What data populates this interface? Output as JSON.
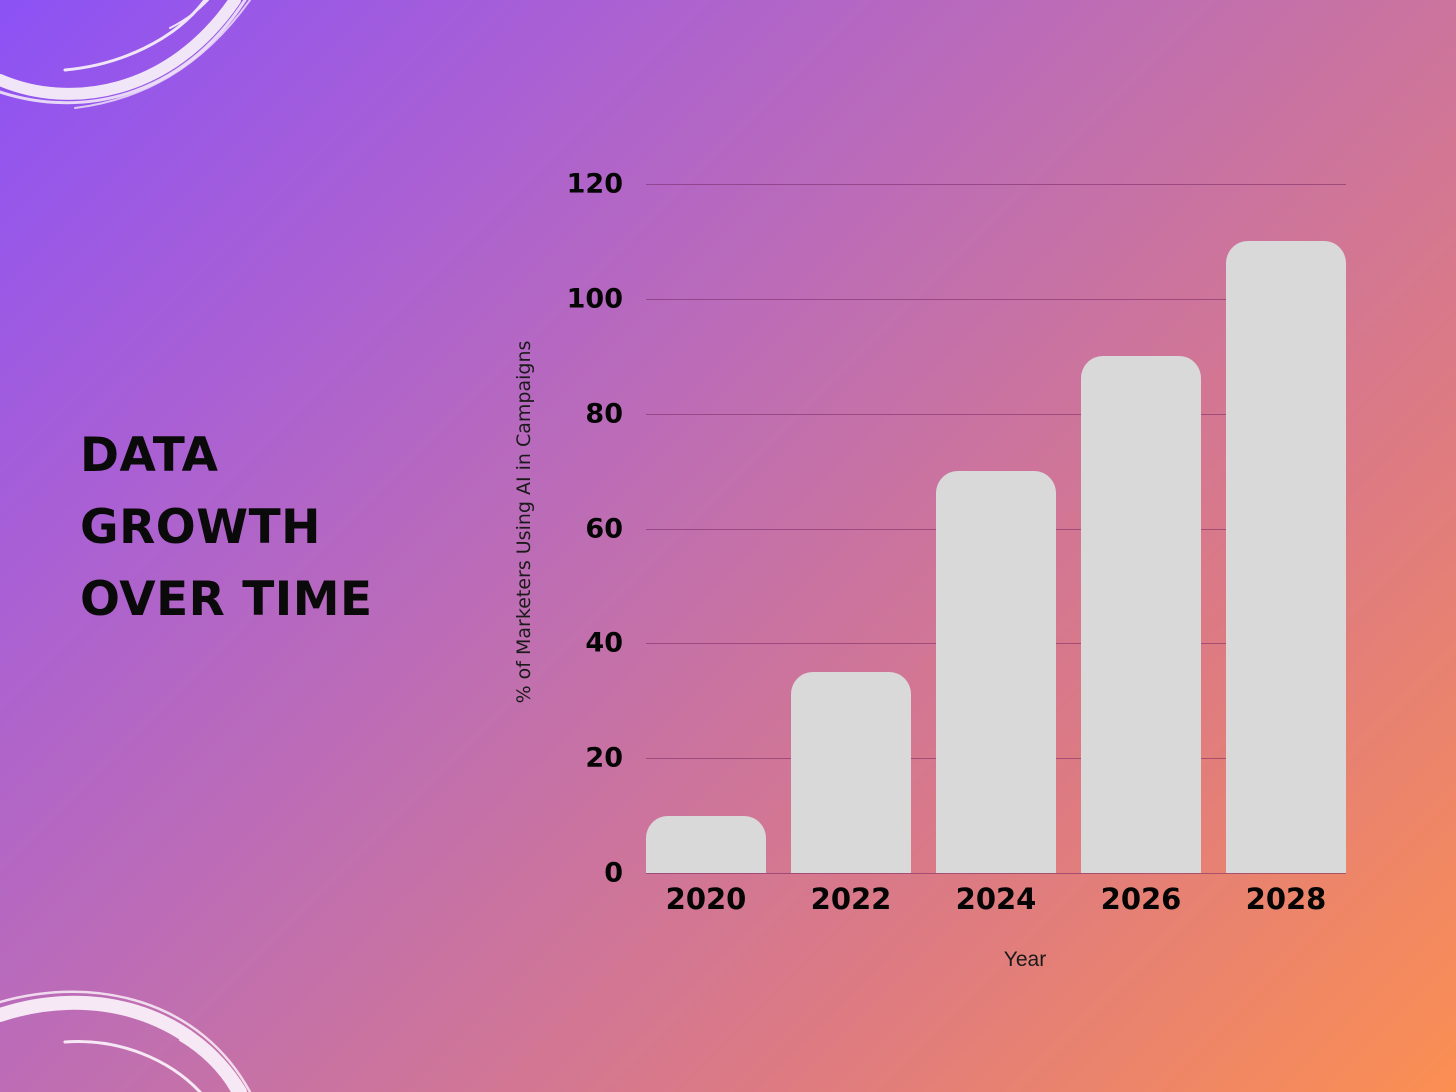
{
  "title": {
    "lines": [
      "DATA",
      "GROWTH",
      "OVER TIME"
    ]
  },
  "decorations": {
    "top_left": "brush-swirl-icon",
    "bottom_left": "brush-swirl-icon",
    "background_gradient": [
      "#8c52f5",
      "#c270ad",
      "#fb8f52"
    ],
    "bar_color": "#d9d9d9"
  },
  "chart_data": {
    "type": "bar",
    "title": "DATA GROWTH OVER TIME",
    "categories": [
      "2020",
      "2022",
      "2024",
      "2026",
      "2028"
    ],
    "values": [
      10,
      35,
      70,
      90,
      110
    ],
    "xlabel": "Year",
    "ylabel": "% of Marketers Using AI in Campaigns",
    "ylim": [
      0,
      120
    ],
    "yticks": [
      "0",
      "20",
      "40",
      "60",
      "80",
      "100",
      "120"
    ],
    "grid": true,
    "legend": null
  }
}
